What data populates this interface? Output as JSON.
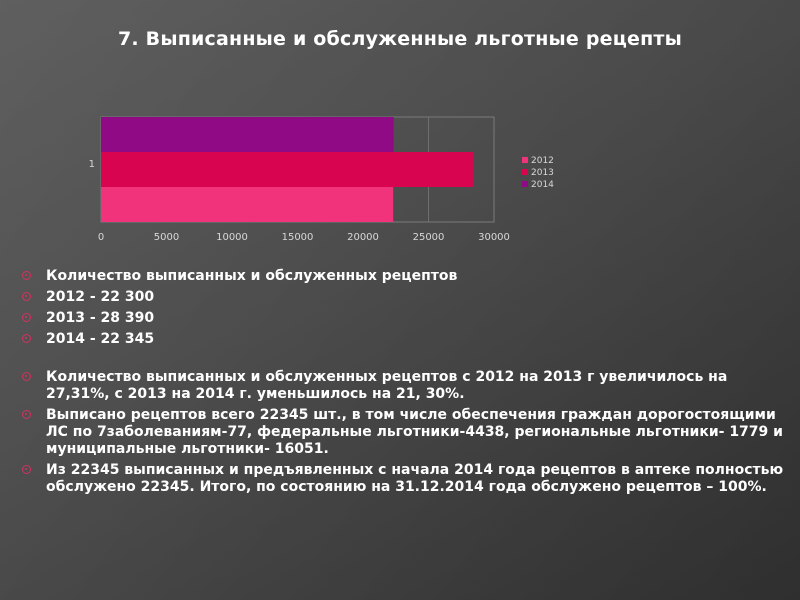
{
  "slide": {
    "title": "7. Выписанные  и обслуженные льготные рецепты",
    "bullets": [
      "Количество выписанных и обслуженных рецептов",
      "2012 - 22 300",
      "2013 - 28 390",
      "2014 - 22 345",
      "Количество выписанных и обслуженных рецептов с 2012 на 2013 г увеличилось на  27,31%,  с 2013 на 2014 г. уменьшилось на  21, 30%.",
      "Выписано рецептов всего 22345 шт., в том числе обеспечения граждан дорогостоящими ЛС по 7заболеваниям-77, федеральные льготники-4438, региональные льготники- 1779 и муниципальные льготники- 16051.",
      "Из 22345 выписанных и предъявленных с начала 2014 года рецептов в аптеке полностью обслужено 22345. Итого, по состоянию на 31.12.2014 года обслужено рецептов – 100%."
    ],
    "bullet_color": "#d2335f"
  },
  "chart_data": {
    "type": "bar",
    "orientation": "horizontal",
    "categories": [
      "1"
    ],
    "series": [
      {
        "name": "2012",
        "values": [
          22300
        ],
        "color": "#f0337a"
      },
      {
        "name": "2013",
        "values": [
          28390
        ],
        "color": "#d9044f"
      },
      {
        "name": "2014",
        "values": [
          22345
        ],
        "color": "#900a86"
      }
    ],
    "x_ticks": [
      0,
      5000,
      10000,
      15000,
      20000,
      25000,
      30000
    ],
    "xlim": [
      0,
      30000
    ],
    "grid": true,
    "legend": "right",
    "title": "",
    "xlabel": "",
    "ylabel": ""
  }
}
